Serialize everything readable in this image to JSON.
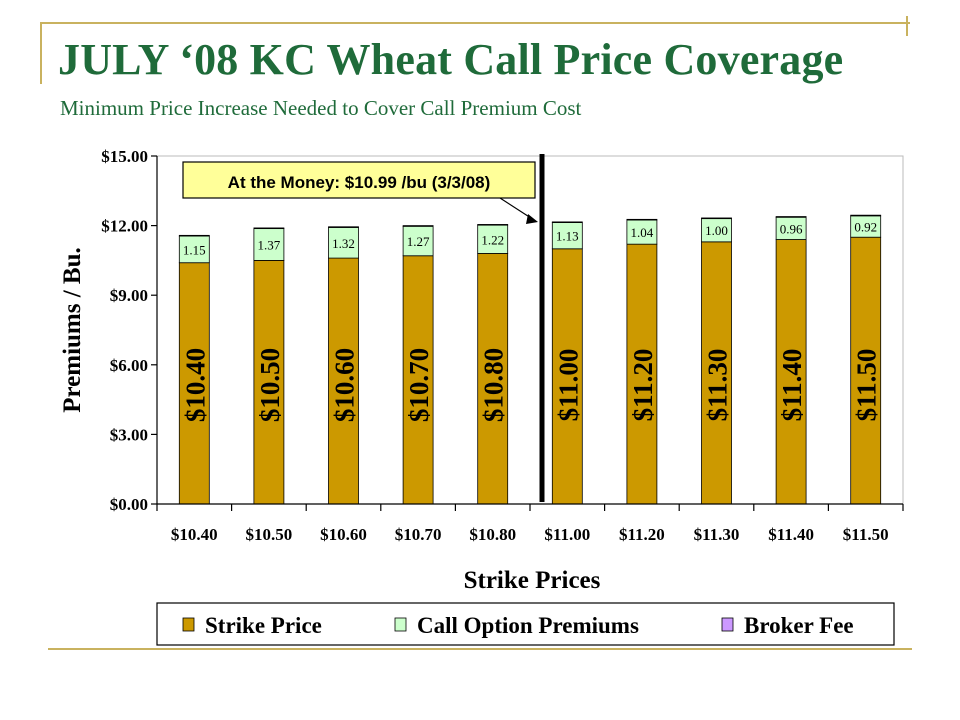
{
  "slide": {
    "title": "JULY ‘08 KC Wheat Call Price Coverage",
    "subtitle": "Minimum Price Increase Needed to Cover Call Premium Cost"
  },
  "colors": {
    "title": "#1f6b3a",
    "strike": "#cc9900",
    "premium": "#ccffcc",
    "broker": "#cc99ff",
    "accent": "#ffff99",
    "decoration": "#c9b25f"
  },
  "chart_data": {
    "type": "bar",
    "stacked": true,
    "categories": [
      "$10.40",
      "$10.50",
      "$10.60",
      "$10.70",
      "$10.80",
      "$11.00",
      "$11.20",
      "$11.30",
      "$11.40",
      "$11.50"
    ],
    "series": [
      {
        "name": "Strike Price",
        "values": [
          10.4,
          10.5,
          10.6,
          10.7,
          10.8,
          11.0,
          11.2,
          11.3,
          11.4,
          11.5
        ]
      },
      {
        "name": "Call Option Premiums",
        "values": [
          1.15,
          1.37,
          1.32,
          1.27,
          1.22,
          1.13,
          1.04,
          1.0,
          0.96,
          0.92
        ]
      },
      {
        "name": "Broker Fee",
        "values": [
          0.03,
          0.03,
          0.03,
          0.03,
          0.03,
          0.03,
          0.03,
          0.03,
          0.03,
          0.03
        ]
      }
    ],
    "strike_labels": [
      "$10.40",
      "$10.50",
      "$10.60",
      "$10.70",
      "$10.80",
      "$11.00",
      "$11.20",
      "$11.30",
      "$11.40",
      "$11.50"
    ],
    "premium_labels": [
      "1.15",
      "1.37",
      "1.32",
      "1.27",
      "1.22",
      "1.13",
      "1.04",
      "1.00",
      "0.96",
      "0.92"
    ],
    "xlabel": "Strike Prices",
    "ylabel": "Premiums / Bu.",
    "ylim": [
      0,
      15
    ],
    "yticks": [
      0,
      3,
      6,
      9,
      12,
      15
    ],
    "ytick_labels": [
      "$0.00",
      "$3.00",
      "$6.00",
      "$9.00",
      "$12.00",
      "$15.00"
    ],
    "grid": false,
    "legend": {
      "position": "bottom",
      "entries": [
        "Strike Price",
        "Call Option Premiums",
        "Broker Fee"
      ]
    },
    "marker_line": {
      "between": [
        "$10.80",
        "$11.00"
      ],
      "value": 10.99
    },
    "annotation": "At the Money: $10.99 /bu (3/3/08)"
  }
}
